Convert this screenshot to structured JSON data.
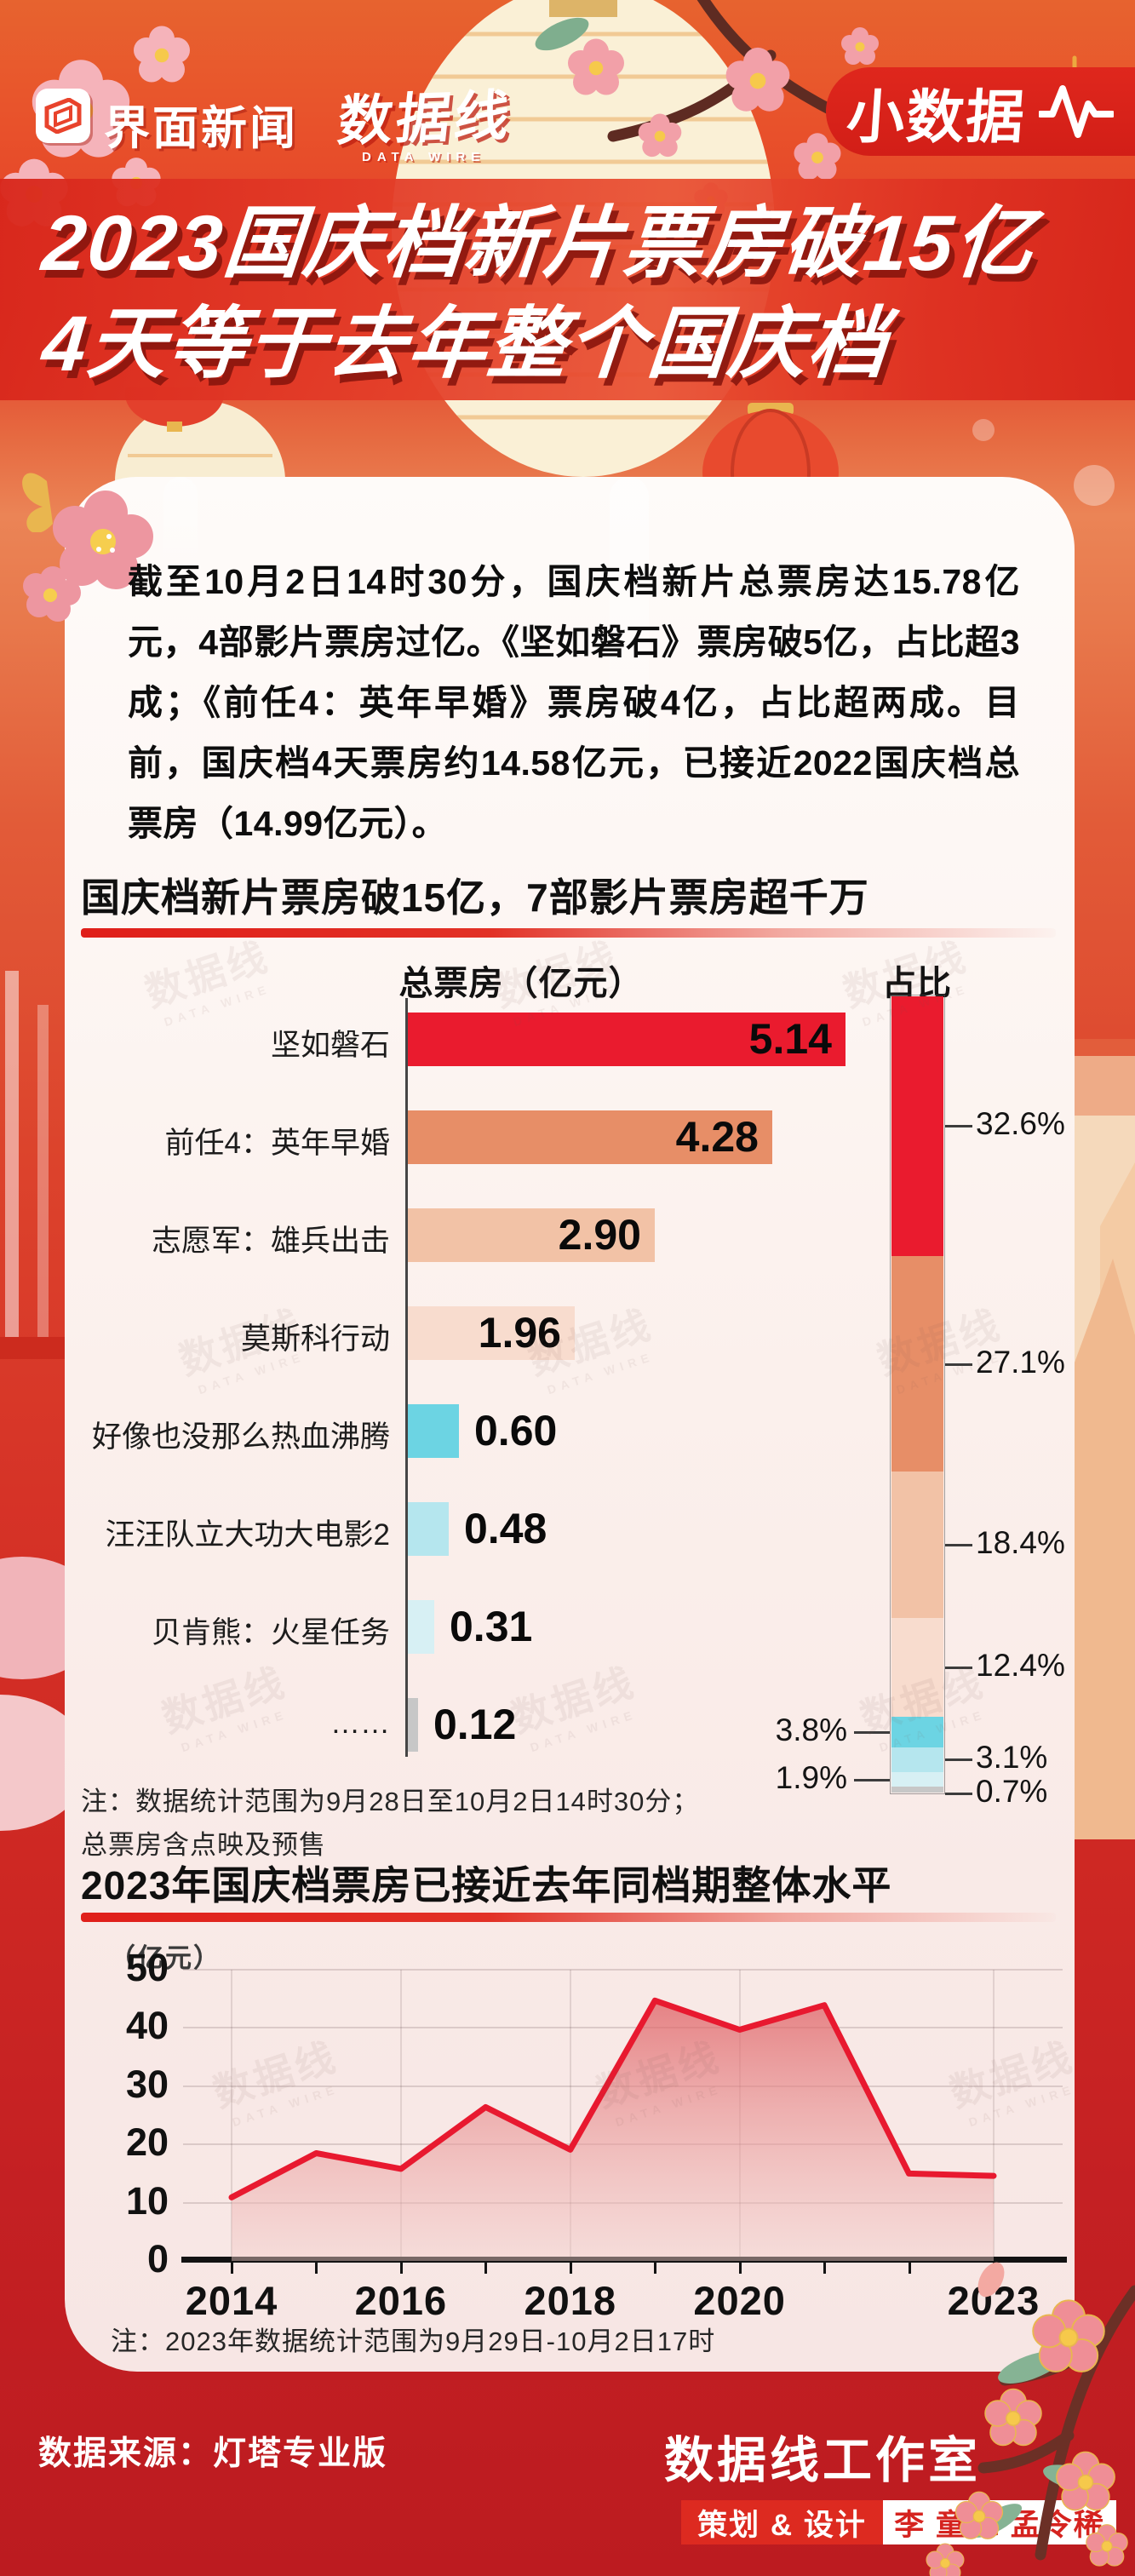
{
  "header": {
    "brand1": "界面新闻",
    "brand2": "数据线",
    "brand2_sub": "DATA WIRE",
    "badge": "小数据"
  },
  "title": {
    "line1": "2023国庆档新片票房破15亿",
    "line2": "4天等于去年整个国庆档"
  },
  "intro": {
    "text": "截至10月2日14时30分，国庆档新片总票房达15.78亿元，4部影片票房过亿。《坚如磐石》票房破5亿，占比超3成；《前任4：英年早婚》票房破4亿，占比超两成。目前，国庆档4天票房约14.58亿元，已接近2022国庆档总票房（14.99亿元）。"
  },
  "watermark": {
    "text": "数据线",
    "sub": "DATA WIRE"
  },
  "chart_data": [
    {
      "type": "bar",
      "title": "国庆档新片票房破15亿，7部影片票房超千万",
      "value_header": "总票房（亿元）",
      "share_header": "占比",
      "unit": "亿元",
      "xlim": [
        0,
        5.5
      ],
      "items": [
        {
          "label": "坚如磐石",
          "value": 5.14,
          "value_label": "5.14",
          "share_pct": 32.6,
          "share_label": "32.6%",
          "color": "#EA1B2E",
          "share_side": "right"
        },
        {
          "label": "前任4：英年早婚",
          "value": 4.28,
          "value_label": "4.28",
          "share_pct": 27.1,
          "share_label": "27.1%",
          "color": "#E78E67",
          "share_side": "right"
        },
        {
          "label": "志愿军：雄兵出击",
          "value": 2.9,
          "value_label": "2.90",
          "share_pct": 18.4,
          "share_label": "18.4%",
          "color": "#F2C2A6",
          "share_side": "right"
        },
        {
          "label": "莫斯科行动",
          "value": 1.96,
          "value_label": "1.96",
          "share_pct": 12.4,
          "share_label": "12.4%",
          "color": "#F8DCCE",
          "share_side": "right"
        },
        {
          "label": "好像也没那么热血沸腾",
          "value": 0.6,
          "value_label": "0.60",
          "share_pct": 3.8,
          "share_label": "3.8%",
          "color": "#6CD4E3",
          "share_side": "left"
        },
        {
          "label": "汪汪队立大功大电影2",
          "value": 0.48,
          "value_label": "0.48",
          "share_pct": 3.1,
          "share_label": "3.1%",
          "color": "#B5E6EE",
          "share_side": "right"
        },
        {
          "label": "贝肯熊：火星任务",
          "value": 0.31,
          "value_label": "0.31",
          "share_pct": 1.9,
          "share_label": "1.9%",
          "color": "#D7F0F4",
          "share_side": "left"
        },
        {
          "label": "……",
          "value": 0.12,
          "value_label": "0.12",
          "share_pct": 0.7,
          "share_label": "0.7%",
          "color": "#C7C7C7",
          "share_side": "right"
        }
      ],
      "note_line1": "注：数据统计范围为9月28日至10月2日14时30分；",
      "note_line2": "总票房含点映及预售"
    },
    {
      "type": "area",
      "title": "2023年国庆档票房已接近去年同档期整体水平",
      "ylabel": "（亿元）",
      "x": [
        2014,
        2015,
        2016,
        2017,
        2018,
        2019,
        2020,
        2021,
        2022,
        2023
      ],
      "values": [
        10.9,
        18.5,
        15.8,
        26.4,
        19.1,
        44.7,
        39.7,
        43.9,
        15.0,
        14.6
      ],
      "x_tick_labels": [
        "2014",
        "2016",
        "2018",
        "2020",
        "2023"
      ],
      "x_tick_years": [
        2014,
        2016,
        2018,
        2020,
        2023
      ],
      "y_ticks": [
        0,
        10,
        20,
        30,
        40,
        50
      ],
      "ylim": [
        0,
        50
      ],
      "grid": true,
      "line_color": "#E8192F",
      "note": "注：2023年数据统计范围为9月29日-10月2日17时"
    }
  ],
  "footer": {
    "source": "数据来源：灯塔专业版",
    "studio": "数据线工作室",
    "credit_label": "策划 & 设计",
    "credit_names": "李 童 & 孟令稀"
  },
  "colors": {
    "accent_red": "#E3241F",
    "title_band": "#DC2B1F",
    "badge_red": "#D9231B",
    "card_bg": "#FBF2EF",
    "footer_bg": "#C2191E",
    "line_red": "#E8192F"
  },
  "icons": {
    "brand_icon": "jiemian-news-logo",
    "badge_icon": "heartbeat-pulse",
    "decor": [
      "lantern",
      "blossom",
      "firework",
      "butterfly",
      "branch"
    ]
  }
}
